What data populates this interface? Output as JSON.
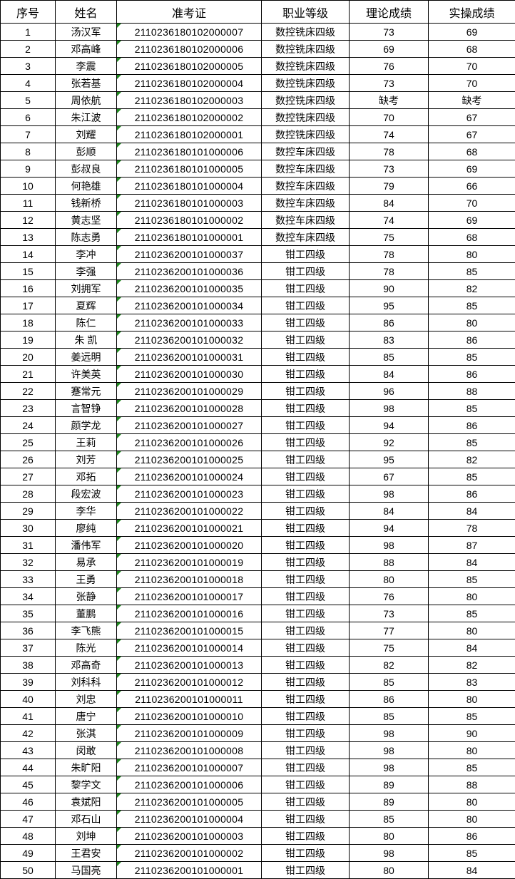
{
  "headers": [
    "序号",
    "姓名",
    "准考证",
    "职业等级",
    "理论成绩",
    "实操成绩"
  ],
  "rows": [
    [
      "1",
      "汤汉军",
      "2110236180102000007",
      "数控铣床四级",
      "73",
      "69"
    ],
    [
      "2",
      "邓高峰",
      "2110236180102000006",
      "数控铣床四级",
      "69",
      "68"
    ],
    [
      "3",
      "李震",
      "2110236180102000005",
      "数控铣床四级",
      "76",
      "70"
    ],
    [
      "4",
      "张若基",
      "2110236180102000004",
      "数控铣床四级",
      "73",
      "70"
    ],
    [
      "5",
      "周依航",
      "2110236180102000003",
      "数控铣床四级",
      "缺考",
      "缺考"
    ],
    [
      "6",
      "朱江波",
      "2110236180102000002",
      "数控铣床四级",
      "70",
      "67"
    ],
    [
      "7",
      "刘耀",
      "2110236180102000001",
      "数控铣床四级",
      "74",
      "67"
    ],
    [
      "8",
      "彭顺",
      "2110236180101000006",
      "数控车床四级",
      "78",
      "68"
    ],
    [
      "9",
      "彭叔良",
      "2110236180101000005",
      "数控车床四级",
      "73",
      "69"
    ],
    [
      "10",
      "何艳雄",
      "2110236180101000004",
      "数控车床四级",
      "79",
      "66"
    ],
    [
      "11",
      "钱新桥",
      "2110236180101000003",
      "数控车床四级",
      "84",
      "70"
    ],
    [
      "12",
      "黄志坚",
      "2110236180101000002",
      "数控车床四级",
      "74",
      "69"
    ],
    [
      "13",
      "陈志勇",
      "2110236180101000001",
      "数控车床四级",
      "75",
      "68"
    ],
    [
      "14",
      "李冲",
      "2110236200101000037",
      "钳工四级",
      "78",
      "80"
    ],
    [
      "15",
      "李强",
      "2110236200101000036",
      "钳工四级",
      "78",
      "85"
    ],
    [
      "16",
      "刘拥军",
      "2110236200101000035",
      "钳工四级",
      "90",
      "82"
    ],
    [
      "17",
      "夏辉",
      "2110236200101000034",
      "钳工四级",
      "95",
      "85"
    ],
    [
      "18",
      "陈仁",
      "2110236200101000033",
      "钳工四级",
      "86",
      "80"
    ],
    [
      "19",
      "朱 凯",
      "2110236200101000032",
      "钳工四级",
      "83",
      "86"
    ],
    [
      "20",
      "姜远明",
      "2110236200101000031",
      "钳工四级",
      "85",
      "85"
    ],
    [
      "21",
      "许美英",
      "2110236200101000030",
      "钳工四级",
      "84",
      "86"
    ],
    [
      "22",
      "蹇常元",
      "2110236200101000029",
      "钳工四级",
      "96",
      "88"
    ],
    [
      "23",
      "言智铮",
      "2110236200101000028",
      "钳工四级",
      "98",
      "85"
    ],
    [
      "24",
      "颜学龙",
      "2110236200101000027",
      "钳工四级",
      "94",
      "86"
    ],
    [
      "25",
      "王莉",
      "2110236200101000026",
      "钳工四级",
      "92",
      "85"
    ],
    [
      "26",
      "刘芳",
      "2110236200101000025",
      "钳工四级",
      "95",
      "82"
    ],
    [
      "27",
      "邓拓",
      "2110236200101000024",
      "钳工四级",
      "67",
      "85"
    ],
    [
      "28",
      "段宏波",
      "2110236200101000023",
      "钳工四级",
      "98",
      "86"
    ],
    [
      "29",
      "李华",
      "2110236200101000022",
      "钳工四级",
      "84",
      "84"
    ],
    [
      "30",
      "廖纯",
      "2110236200101000021",
      "钳工四级",
      "94",
      "78"
    ],
    [
      "31",
      "潘伟军",
      "2110236200101000020",
      "钳工四级",
      "98",
      "87"
    ],
    [
      "32",
      "易承",
      "2110236200101000019",
      "钳工四级",
      "88",
      "84"
    ],
    [
      "33",
      "王勇",
      "2110236200101000018",
      "钳工四级",
      "80",
      "85"
    ],
    [
      "34",
      "张静",
      "2110236200101000017",
      "钳工四级",
      "76",
      "80"
    ],
    [
      "35",
      "董鹏",
      "2110236200101000016",
      "钳工四级",
      "73",
      "85"
    ],
    [
      "36",
      "李飞熊",
      "2110236200101000015",
      "钳工四级",
      "77",
      "80"
    ],
    [
      "37",
      "陈光",
      "2110236200101000014",
      "钳工四级",
      "75",
      "84"
    ],
    [
      "38",
      "邓高奇",
      "2110236200101000013",
      "钳工四级",
      "82",
      "82"
    ],
    [
      "39",
      "刘科科",
      "2110236200101000012",
      "钳工四级",
      "85",
      "83"
    ],
    [
      "40",
      "刘忠",
      "2110236200101000011",
      "钳工四级",
      "86",
      "80"
    ],
    [
      "41",
      "唐宁",
      "2110236200101000010",
      "钳工四级",
      "85",
      "85"
    ],
    [
      "42",
      "张淇",
      "2110236200101000009",
      "钳工四级",
      "98",
      "90"
    ],
    [
      "43",
      "闵敢",
      "2110236200101000008",
      "钳工四级",
      "98",
      "80"
    ],
    [
      "44",
      "朱旷阳",
      "2110236200101000007",
      "钳工四级",
      "98",
      "85"
    ],
    [
      "45",
      "黎学文",
      "2110236200101000006",
      "钳工四级",
      "89",
      "88"
    ],
    [
      "46",
      "袁斌阳",
      "2110236200101000005",
      "钳工四级",
      "89",
      "80"
    ],
    [
      "47",
      "邓石山",
      "2110236200101000004",
      "钳工四级",
      "85",
      "80"
    ],
    [
      "48",
      "刘坤",
      "2110236200101000003",
      "钳工四级",
      "80",
      "86"
    ],
    [
      "49",
      "王君安",
      "2110236200101000002",
      "钳工四级",
      "98",
      "85"
    ],
    [
      "50",
      "马国亮",
      "2110236200101000001",
      "钳工四级",
      "80",
      "84"
    ]
  ],
  "colors": {
    "border": "#000000",
    "text_indicator": "#1e8a1e"
  }
}
